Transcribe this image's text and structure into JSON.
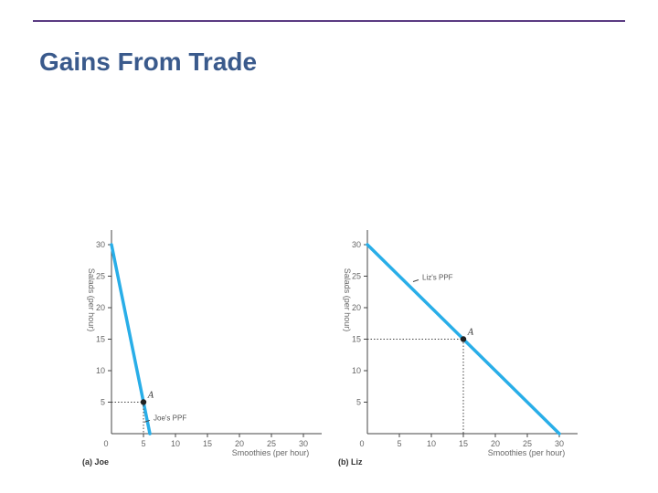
{
  "slide": {
    "title": "Gains From Trade",
    "rule_color": "#5b3b82",
    "title_color": "#3a5a8c"
  },
  "chart_data": [
    {
      "type": "line",
      "caption": "(a) Joe",
      "xlabel": "Smoothies (per hour)",
      "ylabel": "Salads (per hour)",
      "xlim": [
        0,
        30
      ],
      "ylim": [
        0,
        30
      ],
      "x_ticks": [
        "0",
        "5",
        "10",
        "15",
        "20",
        "25",
        "30"
      ],
      "y_ticks": [
        "5",
        "10",
        "15",
        "20",
        "25",
        "30"
      ],
      "series": [
        {
          "name": "Joe's PPF",
          "color": "#29aee8",
          "points": [
            [
              0,
              30
            ],
            [
              6,
              0
            ]
          ]
        }
      ],
      "annotations": [
        {
          "label": "A",
          "x": 5,
          "y": 5
        },
        {
          "label": "Joe's PPF",
          "x": 6,
          "y": 3
        }
      ]
    },
    {
      "type": "line",
      "caption": "(b) Liz",
      "xlabel": "Smoothies (per hour)",
      "ylabel": "Salads (per hour)",
      "xlim": [
        0,
        30
      ],
      "ylim": [
        0,
        30
      ],
      "x_ticks": [
        "0",
        "5",
        "10",
        "15",
        "20",
        "25",
        "30"
      ],
      "y_ticks": [
        "5",
        "10",
        "15",
        "20",
        "25",
        "30"
      ],
      "series": [
        {
          "name": "Liz's PPF",
          "color": "#29aee8",
          "points": [
            [
              0,
              30
            ],
            [
              30,
              0
            ]
          ]
        }
      ],
      "annotations": [
        {
          "label": "A",
          "x": 15,
          "y": 15
        },
        {
          "label": "Liz's PPF",
          "x": 8,
          "y": 25
        }
      ]
    }
  ]
}
